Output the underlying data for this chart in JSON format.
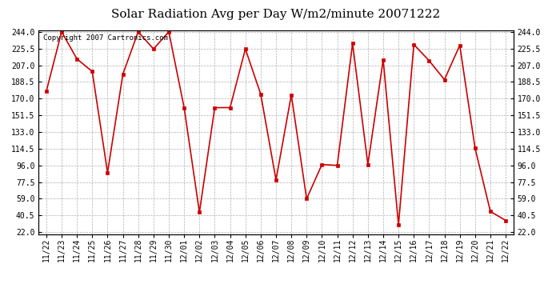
{
  "title": "Solar Radiation Avg per Day W/m2/minute 20071222",
  "copyright": "Copyright 2007 Cartronics.com",
  "dates": [
    "11/22",
    "11/23",
    "11/24",
    "11/25",
    "11/26",
    "11/27",
    "11/28",
    "11/29",
    "11/30",
    "12/01",
    "12/02",
    "12/03",
    "12/04",
    "12/05",
    "12/06",
    "12/07",
    "12/08",
    "12/09",
    "12/10",
    "12/11",
    "12/12",
    "12/13",
    "12/14",
    "12/15",
    "12/16",
    "12/17",
    "12/18",
    "12/19",
    "12/20",
    "12/21",
    "12/22"
  ],
  "values": [
    178,
    244,
    214,
    200,
    88,
    197,
    244,
    225,
    244,
    160,
    44,
    160,
    160,
    225,
    175,
    80,
    174,
    59,
    97,
    96,
    231,
    97,
    213,
    30,
    230,
    212,
    191,
    229,
    115,
    45,
    35
  ],
  "line_color": "#cc0000",
  "marker_color": "#cc0000",
  "bg_color": "#ffffff",
  "plot_bg_color": "#ffffff",
  "grid_color": "#b0b0b0",
  "yticks": [
    22.0,
    40.5,
    59.0,
    77.5,
    96.0,
    114.5,
    133.0,
    151.5,
    170.0,
    188.5,
    207.0,
    225.5,
    244.0
  ],
  "ymin": 22.0,
  "ymax": 244.0,
  "title_fontsize": 11,
  "tick_fontsize": 7,
  "copyright_fontsize": 6.5
}
